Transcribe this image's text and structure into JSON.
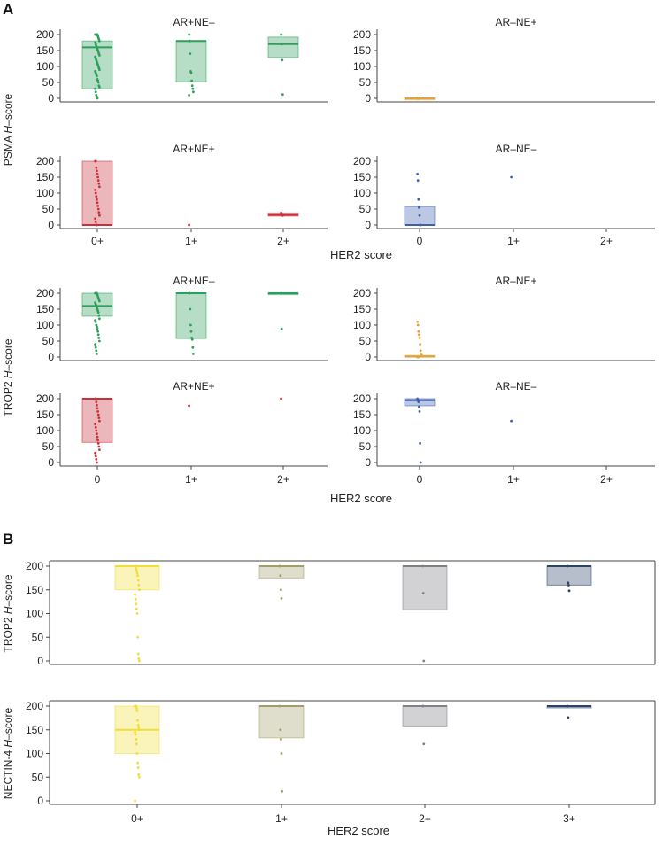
{
  "figure": {
    "panel_a_label": "A",
    "panel_b_label": "B",
    "colors": {
      "ARposNEneg": "#2e9e5b",
      "ARnegNEpos": "#e2a23a",
      "ARposNEpos": "#c9303a",
      "ARnegNEneg": "#3f5fae",
      "her0": "#f2dc3a",
      "her1": "#a39d6a",
      "her2": "#7f7f86",
      "her3": "#2b4466"
    }
  },
  "chart_data": [
    {
      "id": "psma",
      "type": "box-strip",
      "ylabel_pre": "PSMA ",
      "ylabel_italic": "H",
      "ylabel_post": "–score",
      "xlabel": "HER2 score",
      "ylim": [
        0,
        200
      ],
      "yticks": [
        0,
        50,
        100,
        150,
        200
      ],
      "facets": [
        {
          "title": "AR+NE–",
          "color": "ARposNEneg",
          "position": "top-left",
          "groups": [
            {
              "cat": 0,
              "box": {
                "q1": 30,
                "median": 160,
                "q3": 180
              },
              "points": [
                200,
                200,
                200,
                200,
                200,
                195,
                190,
                185,
                180,
                175,
                170,
                165,
                160,
                155,
                150,
                145,
                140,
                135,
                130,
                125,
                120,
                115,
                110,
                105,
                100,
                95,
                90,
                85,
                80,
                75,
                70,
                60,
                55,
                50,
                40,
                35,
                30,
                20,
                10,
                5,
                0
              ]
            },
            {
              "cat": 1,
              "box": {
                "q1": 52,
                "median": 180,
                "q3": 180
              },
              "points": [
                200,
                180,
                140,
                85,
                80,
                55,
                40,
                30,
                20,
                10
              ]
            },
            {
              "cat": 2,
              "box": {
                "q1": 128,
                "median": 170,
                "q3": 192
              },
              "points": [
                200,
                170,
                120,
                12
              ]
            }
          ]
        },
        {
          "title": "AR–NE+",
          "color": "ARnegNEpos",
          "position": "top-right",
          "groups": [
            {
              "cat": 0,
              "box": {
                "q1": 0,
                "median": 0,
                "q3": 1
              },
              "points": [
                0,
                0,
                0,
                2
              ]
            }
          ]
        },
        {
          "title": "AR+NE+",
          "color": "ARposNEpos",
          "position": "bottom-left",
          "groups": [
            {
              "cat": 0,
              "box": {
                "q1": 0,
                "median": 0,
                "q3": 200
              },
              "points": [
                200,
                200,
                180,
                170,
                160,
                150,
                140,
                130,
                120,
                110,
                100,
                90,
                80,
                70,
                60,
                50,
                40,
                30,
                20,
                10,
                0,
                0
              ]
            },
            {
              "cat": 1,
              "box": null,
              "points": [
                0
              ]
            },
            {
              "cat": 2,
              "box": {
                "q1": 28,
                "median": 32,
                "q3": 38
              },
              "points": [
                38,
                35,
                32,
                30
              ]
            }
          ]
        },
        {
          "title": "AR–NE–",
          "color": "ARnegNEneg",
          "position": "bottom-right",
          "groups": [
            {
              "cat": 0,
              "box": {
                "q1": 0,
                "median": 0,
                "q3": 58
              },
              "points": [
                160,
                140,
                80,
                55,
                30,
                0,
                0
              ]
            },
            {
              "cat": 1,
              "box": null,
              "points": [
                150
              ]
            }
          ]
        }
      ],
      "x_tick_labels_left": [
        "0+",
        "1+",
        "2+"
      ],
      "x_tick_labels_right": [
        "0",
        "1+",
        "2+"
      ]
    },
    {
      "id": "trop2a",
      "type": "box-strip",
      "ylabel_pre": "TROP2 ",
      "ylabel_italic": "H",
      "ylabel_post": "–score",
      "xlabel": "HER2 score",
      "ylim": [
        0,
        200
      ],
      "yticks": [
        0,
        50,
        100,
        150,
        200
      ],
      "facets": [
        {
          "title": "AR+NE–",
          "color": "ARposNEneg",
          "position": "top-left",
          "groups": [
            {
              "cat": 0,
              "box": {
                "q1": 128,
                "median": 160,
                "q3": 200
              },
              "points": [
                200,
                200,
                200,
                200,
                195,
                190,
                185,
                180,
                175,
                170,
                165,
                160,
                155,
                150,
                145,
                140,
                130,
                120,
                115,
                110,
                100,
                95,
                90,
                80,
                70,
                60,
                50,
                40,
                30,
                20,
                10
              ]
            },
            {
              "cat": 1,
              "box": {
                "q1": 58,
                "median": 200,
                "q3": 200
              },
              "points": [
                200,
                200,
                150,
                100,
                80,
                60,
                55,
                30,
                10
              ]
            },
            {
              "cat": 2,
              "box": {
                "q1": 198,
                "median": 200,
                "q3": 201
              },
              "points": [
                200,
                88
              ]
            }
          ]
        },
        {
          "title": "AR–NE+",
          "color": "ARnegNEpos",
          "position": "top-right",
          "groups": [
            {
              "cat": 0,
              "box": {
                "q1": 0,
                "median": 2,
                "q3": 5
              },
              "points": [
                110,
                100,
                80,
                70,
                60,
                40,
                20,
                10,
                5,
                0,
                0,
                0
              ]
            }
          ]
        },
        {
          "title": "AR+NE+",
          "color": "ARposNEpos",
          "position": "bottom-left",
          "groups": [
            {
              "cat": 0,
              "box": {
                "q1": 63,
                "median": 200,
                "q3": 200
              },
              "points": [
                200,
                200,
                190,
                180,
                170,
                160,
                150,
                140,
                130,
                120,
                110,
                100,
                90,
                80,
                70,
                60,
                50,
                40,
                30,
                20,
                10,
                0
              ]
            },
            {
              "cat": 1,
              "box": null,
              "points": [
                178
              ]
            },
            {
              "cat": 2,
              "box": null,
              "points": [
                200
              ]
            }
          ]
        },
        {
          "title": "AR–NE–",
          "color": "ARnegNEneg",
          "position": "bottom-right",
          "groups": [
            {
              "cat": 0,
              "box": {
                "q1": 178,
                "median": 195,
                "q3": 200
              },
              "points": [
                200,
                195,
                190,
                175,
                160,
                60,
                0
              ]
            },
            {
              "cat": 1,
              "box": null,
              "points": [
                130
              ]
            }
          ]
        }
      ],
      "x_tick_labels_left": [
        "0",
        "1+",
        "2+"
      ],
      "x_tick_labels_right": [
        "0",
        "1+",
        "2+"
      ]
    },
    {
      "id": "trop2b",
      "type": "box-strip",
      "ylabel_pre": "TROP2 ",
      "ylabel_italic": "H",
      "ylabel_post": "–score",
      "ylim": [
        0,
        200
      ],
      "yticks": [
        0,
        50,
        100,
        150,
        200
      ],
      "categories": [
        "0+",
        "1+",
        "2+",
        "3+"
      ],
      "group_colors": [
        "her0",
        "her1",
        "her2",
        "her3"
      ],
      "groups": [
        {
          "box": {
            "q1": 150,
            "median": 200,
            "q3": 200
          },
          "points": [
            200,
            200,
            195,
            190,
            185,
            180,
            170,
            160,
            150,
            140,
            130,
            120,
            110,
            100,
            50,
            15,
            5,
            0
          ]
        },
        {
          "box": {
            "q1": 175,
            "median": 200,
            "q3": 200
          },
          "points": [
            200,
            200,
            180,
            150,
            132
          ]
        },
        {
          "box": {
            "q1": 108,
            "median": 200,
            "q3": 200
          },
          "points": [
            200,
            143,
            0
          ]
        },
        {
          "box": {
            "q1": 160,
            "median": 200,
            "q3": 200
          },
          "points": [
            200,
            200,
            165,
            160,
            148
          ]
        }
      ]
    },
    {
      "id": "nectin4",
      "type": "box-strip",
      "ylabel_pre": "NECTIN-4 ",
      "ylabel_italic": "H",
      "ylabel_post": "–score",
      "xlabel": "HER2 score",
      "ylim": [
        0,
        200
      ],
      "yticks": [
        0,
        50,
        100,
        150,
        200
      ],
      "categories": [
        "0+",
        "1+",
        "2+",
        "3+"
      ],
      "group_colors": [
        "her0",
        "her1",
        "her2",
        "her3"
      ],
      "groups": [
        {
          "box": {
            "q1": 100,
            "median": 150,
            "q3": 200
          },
          "points": [
            200,
            200,
            200,
            195,
            190,
            170,
            160,
            155,
            150,
            145,
            140,
            130,
            120,
            100,
            80,
            70,
            55,
            50,
            0
          ]
        },
        {
          "box": {
            "q1": 133,
            "median": 200,
            "q3": 200
          },
          "points": [
            200,
            200,
            150,
            130,
            100,
            20
          ]
        },
        {
          "box": {
            "q1": 158,
            "median": 200,
            "q3": 200
          },
          "points": [
            200,
            200,
            120
          ]
        },
        {
          "box": {
            "q1": 198,
            "median": 200,
            "q3": 200
          },
          "points": [
            200,
            200,
            176
          ]
        }
      ]
    }
  ]
}
